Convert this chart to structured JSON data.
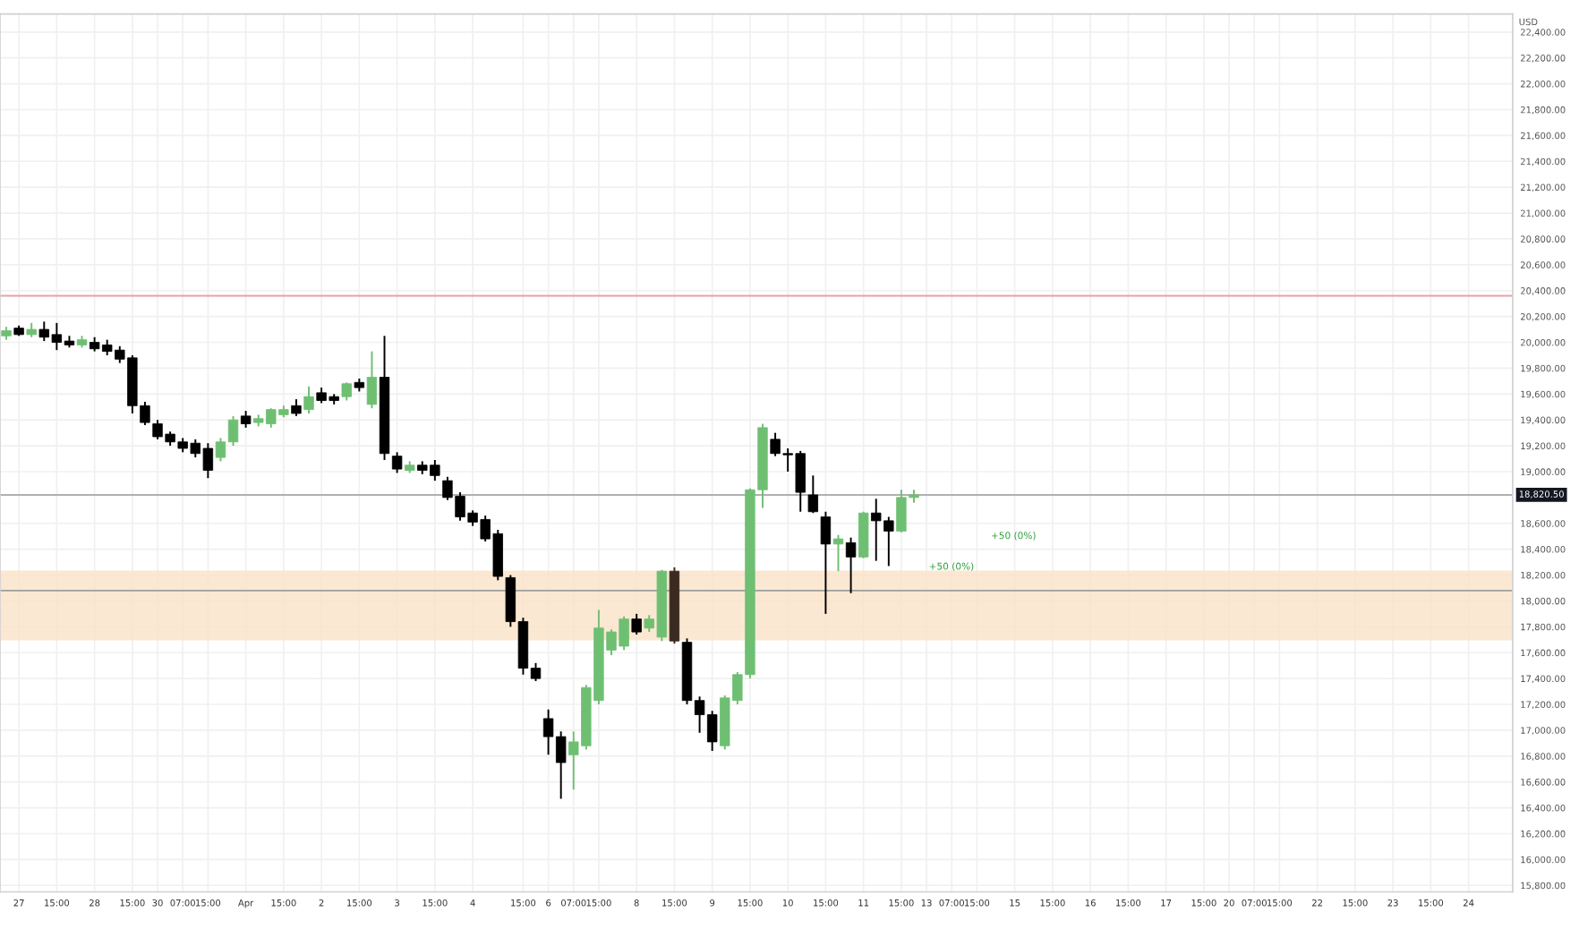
{
  "chart_data": {
    "type": "candlestick",
    "ylabel": "USD",
    "categories": [
      null,
      "27",
      null,
      null,
      "15:00",
      null,
      null,
      "28",
      null,
      null,
      "15:00",
      null,
      "30",
      null,
      "07:00",
      null,
      "15:00",
      null,
      null,
      "Apr",
      null,
      null,
      "15:00",
      null,
      null,
      "2",
      null,
      null,
      "15:00",
      null,
      null,
      "3",
      null,
      null,
      "15:00",
      null,
      null,
      "4",
      null,
      null,
      null,
      "15:00",
      null,
      "6",
      null,
      "07:00",
      null,
      "15:00",
      null,
      null,
      "8",
      null,
      null,
      "15:00",
      null,
      null,
      "9",
      null,
      null,
      "15:00",
      null,
      null,
      "10",
      null,
      null,
      "15:00",
      null,
      null,
      "11",
      null,
      null,
      "15:00",
      null,
      "13",
      null,
      "07:00",
      null,
      "15:00",
      null,
      null,
      "15",
      null,
      null,
      "15:00",
      null,
      null,
      "16",
      null,
      null,
      "15:00",
      null,
      null,
      "17",
      null,
      null,
      "15:00",
      null,
      "20",
      null,
      "07:00",
      null,
      "15:00",
      null,
      null,
      "22",
      null,
      null,
      "15:00",
      null,
      null,
      "23",
      null,
      null,
      "15:00",
      null,
      null,
      "24",
      null,
      null,
      null
    ],
    "ohlc": [
      [
        20050,
        20120,
        20020,
        20090
      ],
      [
        20110,
        20130,
        20050,
        20060
      ],
      [
        20060,
        20150,
        20040,
        20100
      ],
      [
        20100,
        20160,
        20010,
        20040
      ],
      [
        20060,
        20150,
        19940,
        20000
      ],
      [
        20010,
        20050,
        19960,
        19980
      ],
      [
        19980,
        20050,
        19960,
        20020
      ],
      [
        20000,
        20040,
        19930,
        19950
      ],
      [
        19980,
        20020,
        19900,
        19930
      ],
      [
        19940,
        19970,
        19840,
        19870
      ],
      [
        19880,
        19900,
        19450,
        19510
      ],
      [
        19510,
        19540,
        19360,
        19380
      ],
      [
        19370,
        19400,
        19250,
        19270
      ],
      [
        19290,
        19310,
        19200,
        19230
      ],
      [
        19230,
        19260,
        19150,
        19180
      ],
      [
        19220,
        19250,
        19110,
        19140
      ],
      [
        19180,
        19220,
        18950,
        19010
      ],
      [
        19110,
        19260,
        19080,
        19230
      ],
      [
        19230,
        19430,
        19200,
        19400
      ],
      [
        19430,
        19470,
        19340,
        19370
      ],
      [
        19380,
        19440,
        19350,
        19410
      ],
      [
        19370,
        19490,
        19340,
        19480
      ],
      [
        19440,
        19510,
        19420,
        19480
      ],
      [
        19510,
        19560,
        19430,
        19450
      ],
      [
        19480,
        19660,
        19450,
        19580
      ],
      [
        19610,
        19650,
        19530,
        19550
      ],
      [
        19580,
        19600,
        19520,
        19550
      ],
      [
        19580,
        19690,
        19550,
        19680
      ],
      [
        19690,
        19720,
        19620,
        19650
      ],
      [
        19520,
        19930,
        19490,
        19730
      ],
      [
        19730,
        20050,
        19090,
        19140
      ],
      [
        19120,
        19150,
        18990,
        19020
      ],
      [
        19010,
        19080,
        18990,
        19050
      ],
      [
        19050,
        19080,
        18980,
        19010
      ],
      [
        19050,
        19090,
        18930,
        18970
      ],
      [
        18930,
        18960,
        18780,
        18800
      ],
      [
        18810,
        18840,
        18620,
        18650
      ],
      [
        18680,
        18700,
        18580,
        18610
      ],
      [
        18630,
        18660,
        18460,
        18480
      ],
      [
        18520,
        18550,
        18160,
        18190
      ],
      [
        18180,
        18200,
        17800,
        17840
      ],
      [
        17840,
        17870,
        17430,
        17480
      ],
      [
        17480,
        17520,
        17380,
        17400
      ],
      [
        17090,
        17160,
        16810,
        16950
      ],
      [
        16950,
        16990,
        16470,
        16750
      ],
      [
        16810,
        16990,
        16540,
        16910
      ],
      [
        16880,
        17350,
        16850,
        17330
      ],
      [
        17230,
        17930,
        17200,
        17790
      ],
      [
        17620,
        17780,
        17580,
        17760
      ],
      [
        17650,
        17880,
        17620,
        17860
      ],
      [
        17860,
        17900,
        17740,
        17760
      ],
      [
        17790,
        17890,
        17760,
        17860
      ],
      [
        17720,
        18240,
        17690,
        18230
      ],
      [
        18230,
        18260,
        17670,
        17690
      ],
      [
        17680,
        17710,
        17200,
        17230
      ],
      [
        17230,
        17260,
        16980,
        17120
      ],
      [
        17120,
        17150,
        16840,
        16910
      ],
      [
        16880,
        17270,
        16850,
        17250
      ],
      [
        17230,
        17450,
        17200,
        17430
      ],
      [
        17430,
        18870,
        17400,
        18860
      ],
      [
        18860,
        19370,
        18720,
        19340
      ],
      [
        19250,
        19300,
        19120,
        19140
      ],
      [
        19140,
        19180,
        19000,
        19130
      ],
      [
        19140,
        19160,
        18690,
        18840
      ],
      [
        18820,
        18970,
        18680,
        18690
      ],
      [
        18650,
        18690,
        17900,
        18440
      ],
      [
        18440,
        18510,
        18230,
        18480
      ],
      [
        18450,
        18490,
        18060,
        18340
      ],
      [
        18340,
        18690,
        18330,
        18680
      ],
      [
        18680,
        18790,
        18310,
        18620
      ],
      [
        18620,
        18650,
        18270,
        18540
      ],
      [
        18540,
        18860,
        18530,
        18800
      ],
      [
        18800,
        18860,
        18760,
        18820
      ],
      null,
      null,
      null,
      null,
      null,
      null,
      null,
      null,
      null,
      null,
      null,
      null,
      null,
      null,
      null,
      null,
      null,
      null,
      null,
      null,
      null,
      null,
      null,
      null,
      null,
      null,
      null,
      null,
      null,
      null,
      null,
      null,
      null,
      null,
      null,
      null,
      null,
      null,
      null,
      null,
      null,
      null,
      null,
      null,
      null,
      null,
      null
    ],
    "colors": [
      "#6fbf73",
      "#000000",
      "#6fbf73",
      "#000000",
      "#000000",
      "#000000",
      "#6fbf73",
      "#000000",
      "#000000",
      "#000000",
      "#000000",
      "#000000",
      "#000000",
      "#000000",
      "#000000",
      "#000000",
      "#000000",
      "#6fbf73",
      "#6fbf73",
      "#000000",
      "#6fbf73",
      "#6fbf73",
      "#6fbf73",
      "#000000",
      "#6fbf73",
      "#000000",
      "#000000",
      "#6fbf73",
      "#000000",
      "#6fbf73",
      "#000000",
      "#000000",
      "#6fbf73",
      "#000000",
      "#000000",
      "#000000",
      "#000000",
      "#000000",
      "#000000",
      "#000000",
      "#000000",
      "#000000",
      "#000000",
      "#000000",
      "#000000",
      "#6fbf73",
      "#6fbf73",
      "#6fbf73",
      "#6fbf73",
      "#6fbf73",
      "#000000",
      "#6fbf73",
      "#6fbf73",
      "#3b2a1f",
      "#000000",
      "#000000",
      "#000000",
      "#6fbf73",
      "#6fbf73",
      "#6fbf73",
      "#6fbf73",
      "#000000",
      "#000000",
      "#000000",
      "#000000",
      "#000000",
      "#6fbf73",
      "#000000",
      "#6fbf73",
      "#000000",
      "#000000",
      "#6fbf73",
      "#6fbf73",
      null,
      null,
      null,
      null,
      null,
      null,
      null,
      null,
      null,
      null,
      null,
      null,
      null,
      null,
      null,
      null,
      null,
      null,
      null,
      null,
      null,
      null,
      null,
      null,
      null,
      null,
      null,
      null,
      null,
      null,
      null,
      null,
      null,
      null,
      null,
      null,
      null,
      null,
      null,
      null,
      null,
      null,
      null,
      null,
      null,
      null,
      null
    ],
    "ylim": [
      15750,
      22540
    ],
    "yticks": [
      {
        "value": 15800,
        "label": "15,800.00"
      },
      {
        "value": 16000,
        "label": "16,000.00"
      },
      {
        "value": 16200,
        "label": "16,200.00"
      },
      {
        "value": 16400,
        "label": "16,400.00"
      },
      {
        "value": 16600,
        "label": "16,600.00"
      },
      {
        "value": 16800,
        "label": "16,800.00"
      },
      {
        "value": 17000,
        "label": "17,000.00"
      },
      {
        "value": 17200,
        "label": "17,200.00"
      },
      {
        "value": 17400,
        "label": "17,400.00"
      },
      {
        "value": 17600,
        "label": "17,600.00"
      },
      {
        "value": 17800,
        "label": "17,800.00"
      },
      {
        "value": 18000,
        "label": "18,000.00"
      },
      {
        "value": 18200,
        "label": "18,200.00"
      },
      {
        "value": 18400,
        "label": "18,400.00"
      },
      {
        "value": 18600,
        "label": "18,600.00"
      },
      {
        "value": 19000,
        "label": "19,000.00"
      },
      {
        "value": 19200,
        "label": "19,200.00"
      },
      {
        "value": 19400,
        "label": "19,400.00"
      },
      {
        "value": 19600,
        "label": "19,600.00"
      },
      {
        "value": 19800,
        "label": "19,800.00"
      },
      {
        "value": 20000,
        "label": "20,000.00"
      },
      {
        "value": 20200,
        "label": "20,200.00"
      },
      {
        "value": 20400,
        "label": "20,400.00"
      },
      {
        "value": 20600,
        "label": "20,600.00"
      },
      {
        "value": 20800,
        "label": "20,800.00"
      },
      {
        "value": 21000,
        "label": "21,000.00"
      },
      {
        "value": 21200,
        "label": "21,200.00"
      },
      {
        "value": 21400,
        "label": "21,400.00"
      },
      {
        "value": 21600,
        "label": "21,600.00"
      },
      {
        "value": 21800,
        "label": "21,800.00"
      },
      {
        "value": 22000,
        "label": "22,000.00"
      },
      {
        "value": 22200,
        "label": "22,200.00"
      },
      {
        "value": 22400,
        "label": "22,400.00"
      }
    ],
    "grid": true,
    "ref_lines": [
      {
        "axis": "y",
        "value": 20360,
        "color": "#e8a0a8"
      },
      {
        "axis": "y",
        "value": 18080,
        "color": "#9e9e9e"
      },
      {
        "axis": "y",
        "value": 18820.5,
        "label": "18,820.50",
        "color": "#b0b0b0"
      }
    ],
    "bands": [
      {
        "axis": "y",
        "from": 17700,
        "to": 18230,
        "color": "#fbe3c8"
      }
    ],
    "annotations": [
      "+50 (0%)",
      "+50 (0%)"
    ]
  }
}
